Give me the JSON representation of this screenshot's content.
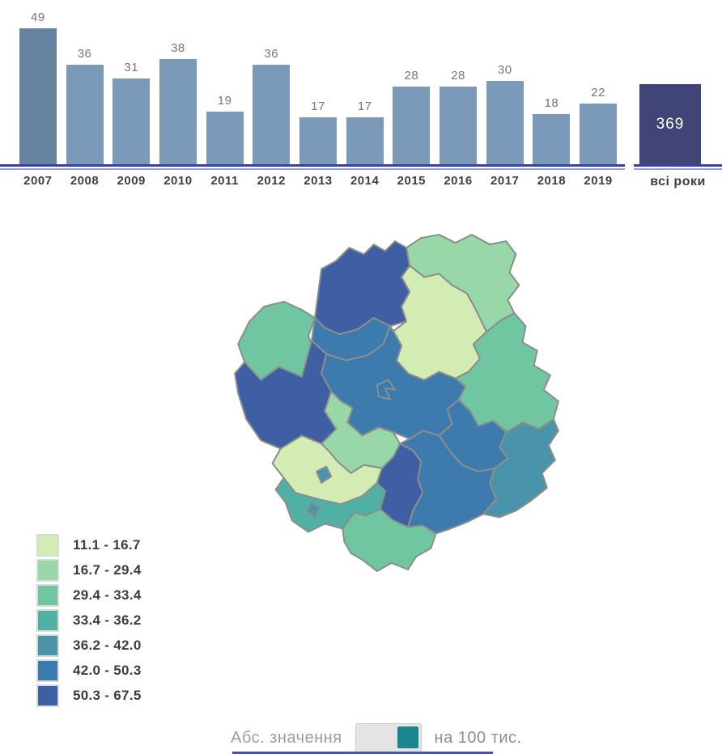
{
  "chart_data": {
    "type": "bar",
    "categories": [
      "2007",
      "2008",
      "2009",
      "2010",
      "2011",
      "2012",
      "2013",
      "2014",
      "2015",
      "2016",
      "2017",
      "2018",
      "2019"
    ],
    "values": [
      49,
      36,
      31,
      38,
      19,
      36,
      17,
      17,
      28,
      28,
      30,
      18,
      22
    ],
    "total": {
      "category": "всі роки",
      "value": 369
    },
    "title": "",
    "xlabel": "",
    "ylabel": "",
    "ylim": [
      0,
      52
    ],
    "grid": false,
    "legend_position": "none",
    "selected_index": 0
  },
  "bar_colors": {
    "default": "#7b9aba",
    "selected": "#65829f",
    "total": "#414476",
    "axis": "#3a41a6",
    "axis_light": "#96a0de",
    "value_label": "#74767e",
    "category_label": "#3d3f4b"
  },
  "map": {
    "stroke": "#8a8f8c",
    "palette": {
      "c1": "#d3ecb4",
      "c2": "#97d7a8",
      "c3": "#70c6a0",
      "c4": "#50b0a4",
      "c5": "#4a94ab",
      "c6": "#3d7bae",
      "c7": "#3f5fa5"
    },
    "legend": [
      {
        "label": "11.1 - 16.7",
        "color": "#d3ecb4"
      },
      {
        "label": "16.7 - 29.4",
        "color": "#97d7a8"
      },
      {
        "label": "29.4 - 33.4",
        "color": "#70c6a0"
      },
      {
        "label": "33.4 - 36.2",
        "color": "#50b0a4"
      },
      {
        "label": "36.2 - 42.0",
        "color": "#4a94ab"
      },
      {
        "label": "42.0 - 50.3",
        "color": "#3d7bae"
      },
      {
        "label": "50.3 - 67.5",
        "color": "#3f5fa5"
      }
    ],
    "districts": [
      {
        "id": "district-1",
        "class": "c3"
      },
      {
        "id": "district-2",
        "class": "c7"
      },
      {
        "id": "district-3",
        "class": "c2"
      },
      {
        "id": "district-4",
        "class": "c1"
      },
      {
        "id": "district-5",
        "class": "c3"
      },
      {
        "id": "district-6",
        "class": "c6"
      },
      {
        "id": "district-7",
        "class": "c7"
      },
      {
        "id": "district-8",
        "class": "c6"
      },
      {
        "id": "district-9",
        "class": "c2"
      },
      {
        "id": "district-10",
        "class": "c1"
      },
      {
        "id": "district-11",
        "class": "c7"
      },
      {
        "id": "district-12",
        "class": "c4"
      },
      {
        "id": "district-13",
        "class": "c3"
      },
      {
        "id": "district-14",
        "class": "c6"
      },
      {
        "id": "district-15",
        "class": "c6"
      },
      {
        "id": "district-16",
        "class": "c5"
      },
      {
        "id": "district-city-enclave-1",
        "class": "c6"
      },
      {
        "id": "district-city-enclave-2",
        "class": "c5"
      },
      {
        "id": "district-city-enclave-3",
        "class": "c5"
      }
    ]
  },
  "toggle": {
    "left_label": "Абс. значення",
    "right_label": "на 100 тис.",
    "selected": "right",
    "knob_color": "#1a868d",
    "track_color": "#e4e4e4"
  }
}
